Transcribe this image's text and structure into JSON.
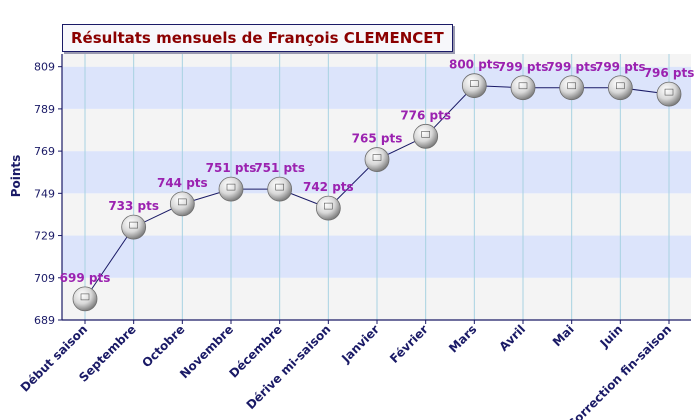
{
  "chart_data": {
    "type": "line",
    "title": "Résultats mensuels de François CLEMENCET",
    "ylabel": "Points",
    "xlabel": "",
    "categories": [
      "Début saison",
      "Septembre",
      "Octobre",
      "Novembre",
      "Décembre",
      "Dérive mi-saison",
      "Janvier",
      "Février",
      "Mars",
      "Avril",
      "Mai",
      "Juin",
      "Correction fin-saison"
    ],
    "series": [
      {
        "values": [
          699,
          733,
          744,
          751,
          751,
          742,
          765,
          776,
          800,
          799,
          799,
          799,
          796
        ]
      }
    ],
    "data_labels": [
      "699 pts",
      "733 pts",
      "744 pts",
      "751 pts",
      "751 pts",
      "742 pts",
      "765 pts",
      "776 pts",
      "800 pts",
      "799 pts",
      "799 pts",
      "799 pts",
      "796 pts"
    ],
    "yticks": [
      689,
      709,
      729,
      749,
      769,
      789,
      809
    ],
    "ylim": [
      689,
      815
    ],
    "grid": "vertical lines and alternating horizontal bands",
    "colors": {
      "band_dark": "#dce4fb",
      "band_light": "#f4f4f4",
      "vgrid": "#a8d2e2",
      "axis": "#1a1a66",
      "line": "#1a1a66",
      "label_text": "#9b22b0",
      "tick_text": "#1a1a66",
      "category_text": "#1a1a66",
      "title_text": "#8b0000"
    }
  }
}
